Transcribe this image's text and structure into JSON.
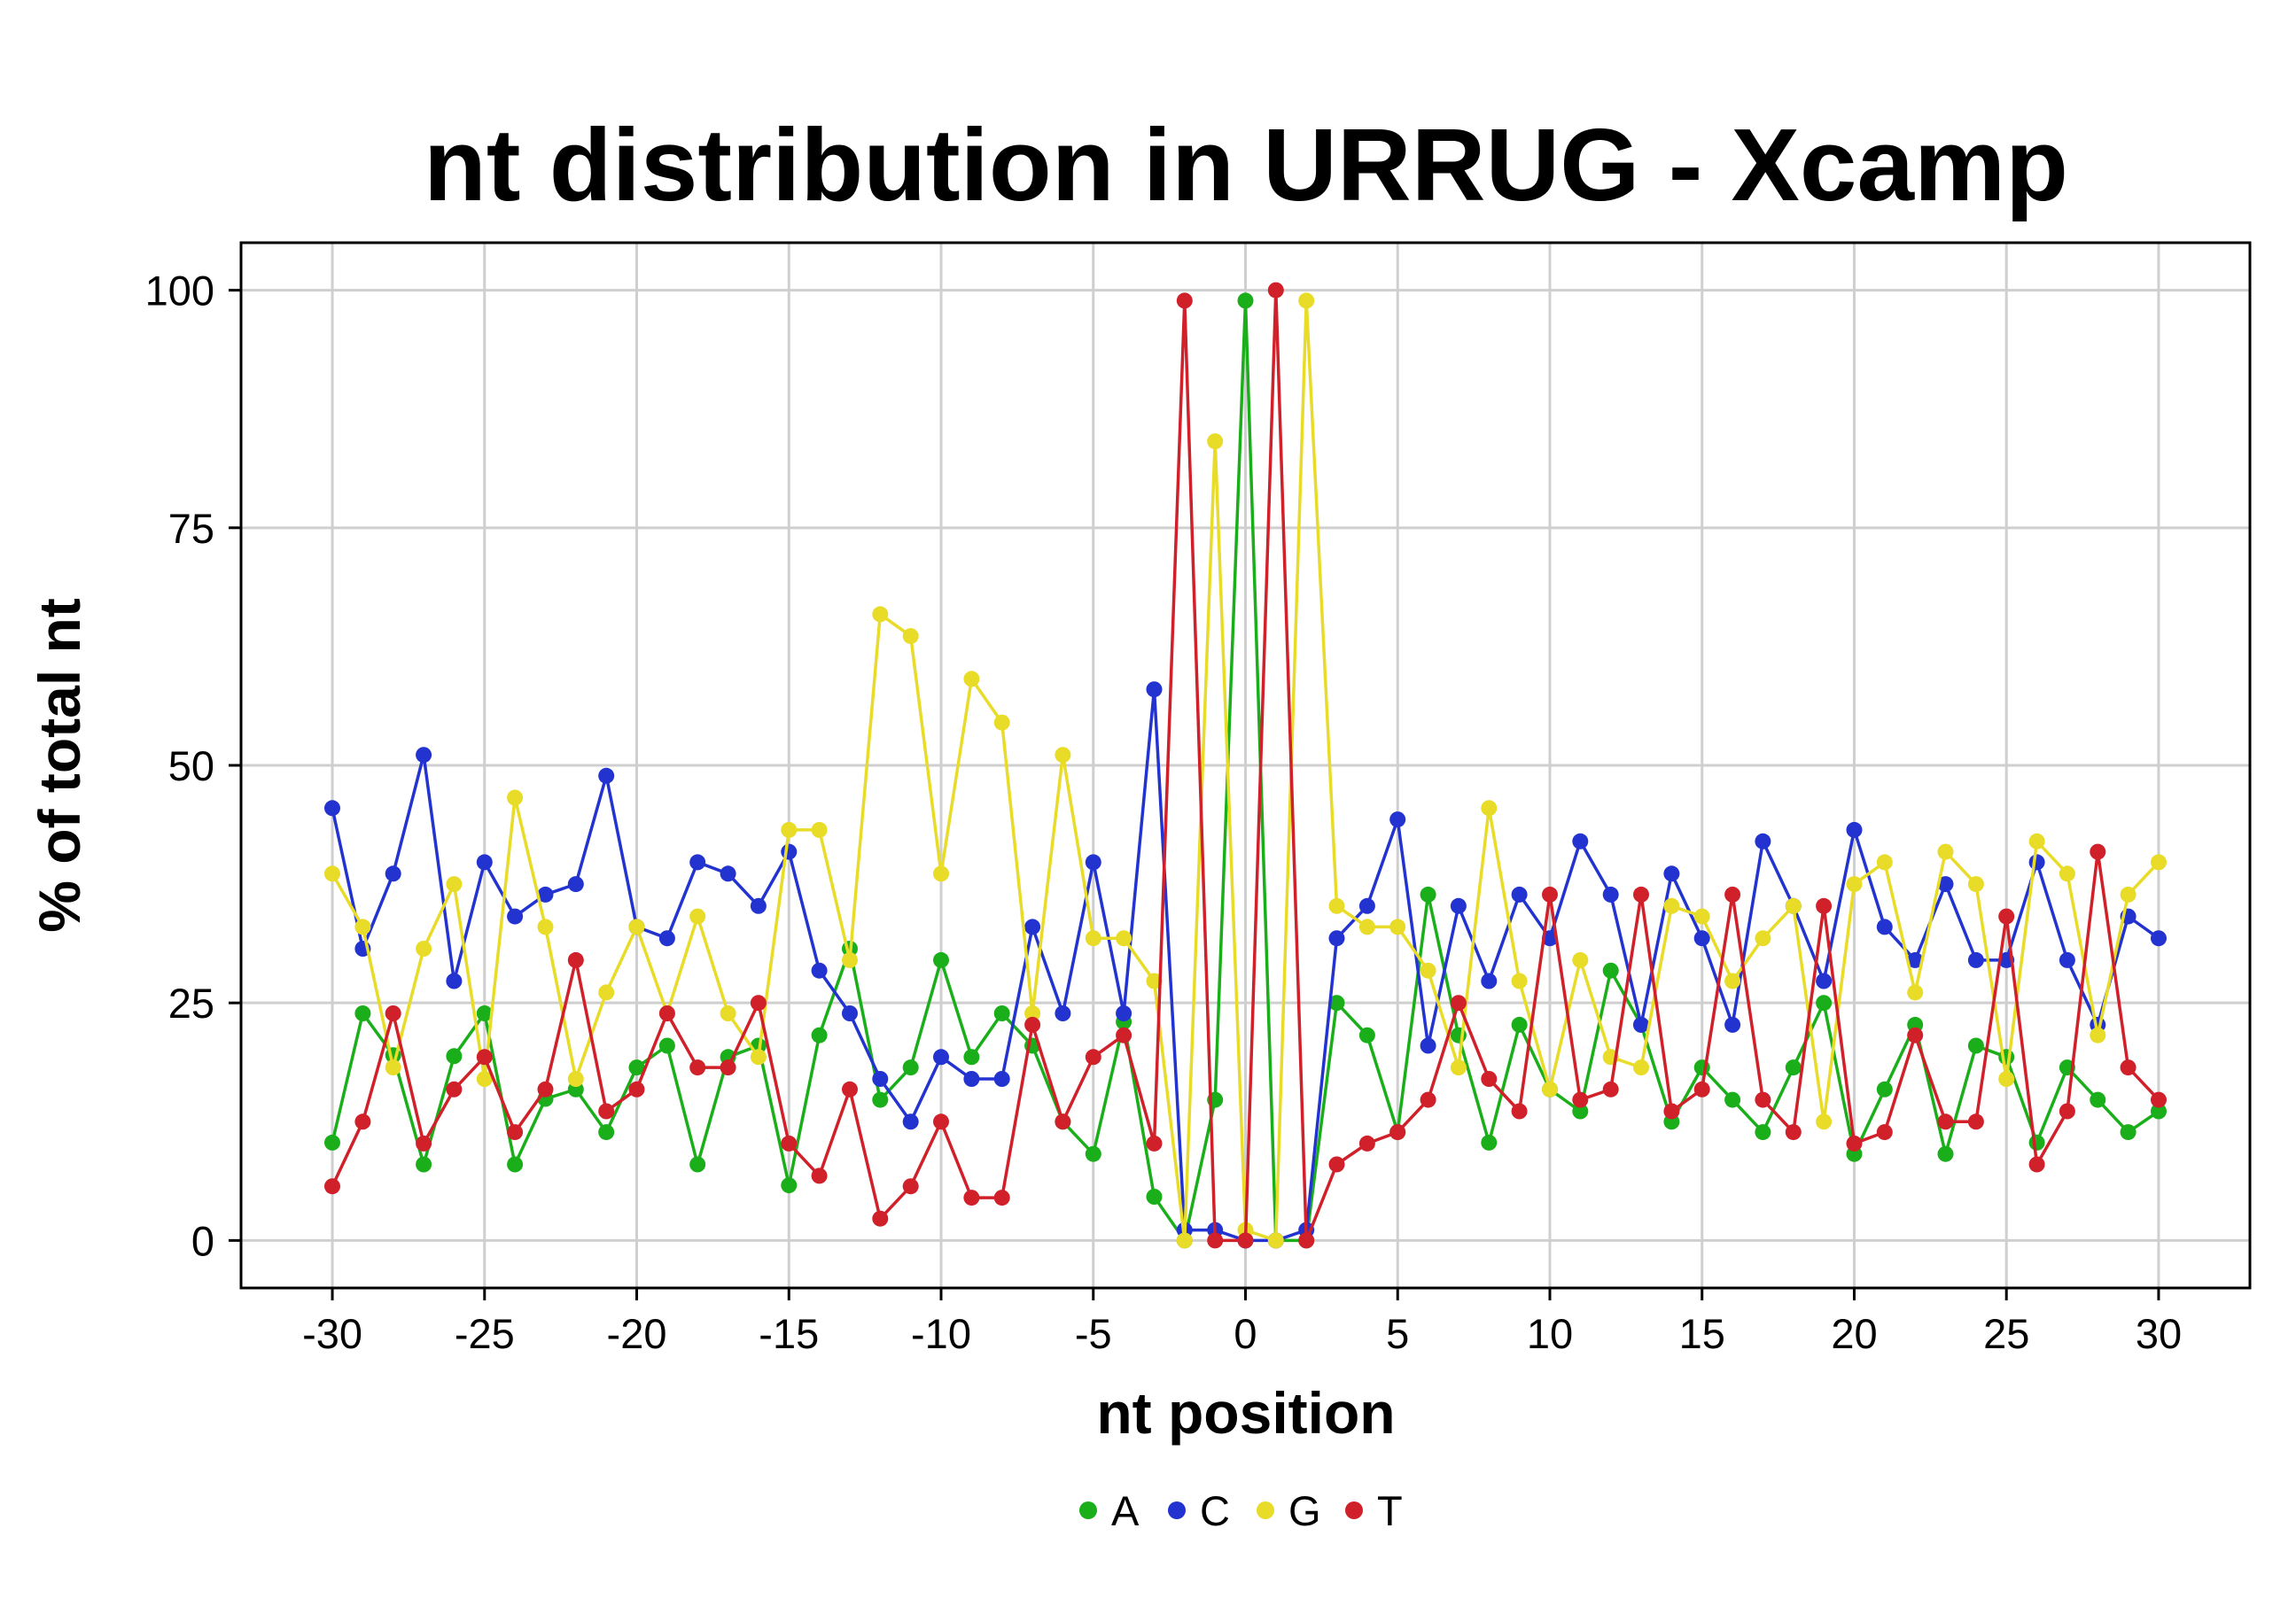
{
  "chart_data": {
    "type": "line",
    "title": "nt distribution in URRUG - Xcamp",
    "xlabel": "nt position",
    "ylabel": "% of total nt",
    "xlim": [
      -33,
      33
    ],
    "ylim": [
      -5,
      105
    ],
    "xticks": [
      -30,
      -25,
      -20,
      -15,
      -10,
      -5,
      0,
      5,
      10,
      15,
      20,
      25,
      30
    ],
    "xtick_labels": [
      "-30",
      "-25",
      "-20",
      "-15",
      "-10",
      "-5",
      "0",
      "5",
      "10",
      "15",
      "20",
      "25",
      "30"
    ],
    "yticks": [
      0,
      25,
      50,
      75,
      100
    ],
    "ytick_labels": [
      "0",
      "25",
      "50",
      "75",
      "100"
    ],
    "grid": true,
    "legend_position": "bottom",
    "x": [
      -30,
      -29,
      -28,
      -27,
      -26,
      -25,
      -24,
      -23,
      -22,
      -21,
      -20,
      -19,
      -18,
      -17,
      -16,
      -15,
      -14,
      -13,
      -12,
      -11,
      -10,
      -9,
      -8,
      -7,
      -6,
      -5,
      -4,
      -3,
      -2,
      -1,
      0,
      1,
      2,
      3,
      4,
      5,
      6,
      7,
      8,
      9,
      10,
      11,
      12,
      13,
      14,
      15,
      16,
      17,
      18,
      19,
      20,
      21,
      22,
      23,
      24,
      25,
      26,
      27,
      28,
      29,
      30
    ],
    "series": [
      {
        "name": "A",
        "color": "#1aaf1a",
        "values": [
          10.3,
          23.9,
          19.5,
          8.0,
          19.4,
          23.9,
          8.0,
          14.9,
          15.9,
          11.4,
          18.2,
          20.5,
          8.0,
          19.3,
          20.5,
          5.8,
          21.6,
          30.7,
          14.8,
          18.2,
          29.5,
          19.3,
          23.9,
          20.5,
          12.5,
          9.1,
          23.0,
          4.6,
          0,
          14.8,
          98.9,
          0,
          0,
          25.0,
          21.6,
          11.4,
          36.4,
          21.6,
          10.3,
          22.7,
          15.9,
          13.6,
          28.4,
          22.7,
          12.5,
          18.2,
          14.8,
          11.4,
          18.2,
          25.0,
          9.1,
          15.9,
          22.7,
          9.1,
          20.5,
          19.3,
          10.3,
          18.2,
          14.8,
          11.4,
          13.6
        ]
      },
      {
        "name": "C",
        "color": "#2233d0",
        "values": [
          45.5,
          30.7,
          38.6,
          51.1,
          27.3,
          39.8,
          34.1,
          36.4,
          37.5,
          48.9,
          33.0,
          31.8,
          39.8,
          38.6,
          35.2,
          40.9,
          28.4,
          23.9,
          17.0,
          12.5,
          19.3,
          17.0,
          17.0,
          33.0,
          23.9,
          39.8,
          23.9,
          58.0,
          1.1,
          1.1,
          0,
          0,
          1.1,
          31.8,
          35.2,
          44.3,
          20.5,
          35.2,
          27.3,
          36.4,
          31.8,
          42.0,
          36.4,
          22.7,
          38.6,
          31.8,
          22.7,
          42.0,
          35.2,
          27.3,
          43.2,
          33.0,
          29.5,
          37.5,
          29.5,
          29.5,
          39.8,
          29.5,
          22.7,
          34.1,
          31.8
        ]
      },
      {
        "name": "G",
        "color": "#e8dc28",
        "values": [
          38.6,
          33.0,
          18.2,
          30.7,
          37.5,
          17.0,
          46.6,
          33.0,
          17.0,
          26.1,
          33.0,
          23.9,
          34.1,
          23.9,
          19.3,
          43.2,
          43.2,
          29.5,
          65.9,
          63.6,
          38.6,
          59.1,
          54.5,
          23.9,
          51.1,
          31.8,
          31.8,
          27.3,
          0,
          84.1,
          1.1,
          0,
          98.9,
          35.2,
          33.0,
          33.0,
          28.4,
          18.2,
          45.5,
          27.3,
          15.9,
          29.5,
          19.3,
          18.2,
          35.2,
          34.1,
          27.3,
          31.8,
          35.2,
          12.5,
          37.5,
          39.8,
          26.1,
          40.9,
          37.5,
          17.0,
          42.0,
          38.6,
          21.6,
          36.4,
          39.8
        ]
      },
      {
        "name": "T",
        "color": "#d0202a",
        "values": [
          5.7,
          12.5,
          23.9,
          10.2,
          15.9,
          19.3,
          11.4,
          15.9,
          29.5,
          13.6,
          15.9,
          23.9,
          18.2,
          18.2,
          25.0,
          10.2,
          6.8,
          15.9,
          2.3,
          5.7,
          12.5,
          4.5,
          4.5,
          22.7,
          12.5,
          19.3,
          21.6,
          10.2,
          98.9,
          0,
          0,
          100,
          0,
          8.0,
          10.2,
          11.4,
          14.8,
          25.0,
          17.0,
          13.6,
          36.4,
          14.8,
          15.9,
          36.4,
          13.6,
          15.9,
          36.4,
          14.8,
          11.4,
          35.2,
          10.2,
          11.4,
          21.6,
          12.5,
          12.5,
          34.1,
          8.0,
          13.6,
          40.9,
          18.2,
          14.8
        ]
      }
    ]
  }
}
